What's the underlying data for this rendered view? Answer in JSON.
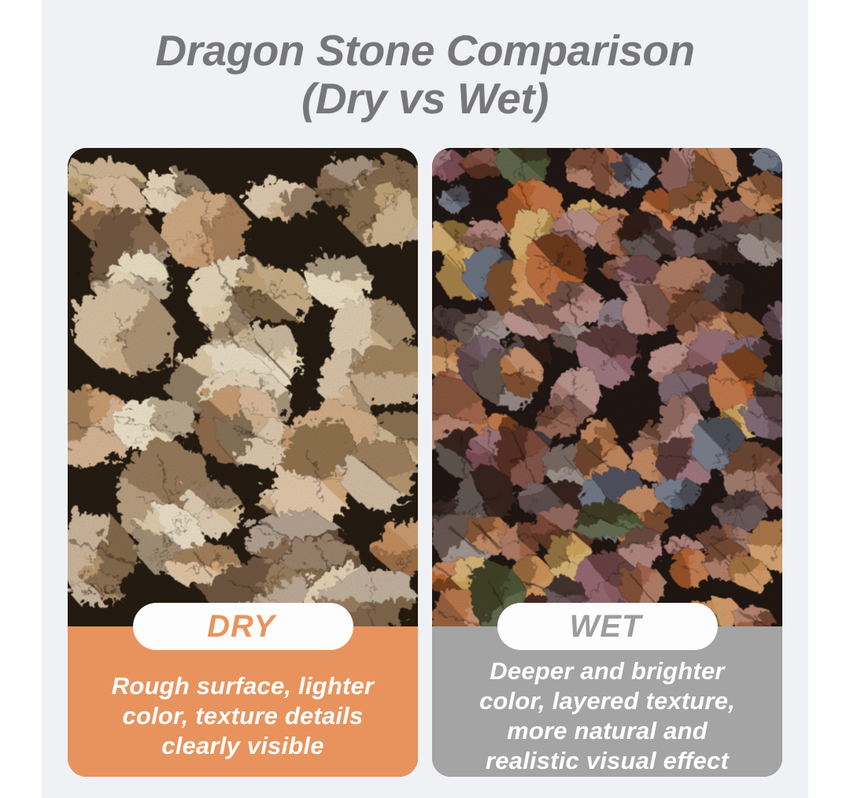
{
  "page": {
    "outer_background": "#ffffff",
    "canvas_background": "#f0f1f4"
  },
  "title": {
    "line1": "Dragon Stone Comparison",
    "line2": "(Dry vs Wet)",
    "color": "#77777a"
  },
  "cards": [
    {
      "id": "dry",
      "label": "DRY",
      "label_color": "#e9945c",
      "accent": "#e8935d",
      "pill_background": "#fdfdfd",
      "text_color": "#ffffff",
      "description_lines": [
        "Rough surface, lighter",
        "color, texture details",
        "clearly visible"
      ],
      "photo": {
        "name": "dry-dragon-stone-photo",
        "background": "#231a10",
        "palette": [
          "#d8c5a4",
          "#cbb18c",
          "#bda075",
          "#a98c68",
          "#e3d4b5",
          "#977c5e",
          "#866b50",
          "#c59a6f",
          "#cfa87a",
          "#b4956e",
          "#dcc9a8",
          "#c08a5c"
        ],
        "seed": 11,
        "cols": 6,
        "rows": 9,
        "gap_chance": 0.1,
        "highlight": 0.26,
        "shade": 0.3,
        "edge_roughness": 22
      }
    },
    {
      "id": "wet",
      "label": "WET",
      "label_color": "#9d9c9c",
      "accent": "#a5a4a4",
      "pill_background": "#fdfdfd",
      "text_color": "#ffffff",
      "description_lines": [
        "Deeper and brighter",
        "color, layered texture,",
        "more natural and",
        "realistic visual effect"
      ],
      "photo": {
        "name": "wet-dragon-stone-photo",
        "background": "#1f1512",
        "palette": [
          "#8a5a48",
          "#7a4638",
          "#a0644a",
          "#b5764a",
          "#c98e55",
          "#5e4a4c",
          "#6e5560",
          "#8a5a62",
          "#586070",
          "#c9a05a",
          "#b5622f",
          "#a87a72",
          "#6a3c34",
          "#4a5233",
          "#8a7a74",
          "#3a2a26"
        ],
        "seed": 29,
        "cols": 9,
        "rows": 13,
        "gap_chance": 0.04,
        "highlight": 0.14,
        "shade": 0.34,
        "edge_roughness": 14
      }
    }
  ]
}
